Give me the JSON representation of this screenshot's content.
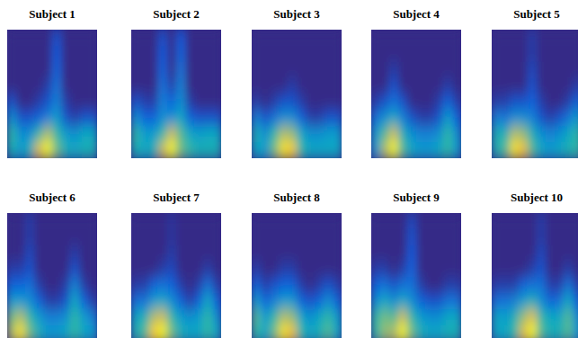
{
  "chart_data": [
    {
      "type": "heatmap",
      "title": "Subject 1",
      "color_range": [
        0,
        1
      ],
      "cells": [
        [
          0,
          0,
          0,
          0,
          0,
          0.1,
          0,
          0,
          0,
          0
        ],
        [
          0,
          0,
          0,
          0,
          0,
          0.12,
          0,
          0,
          0,
          0
        ],
        [
          0,
          0,
          0,
          0,
          0,
          0.15,
          0,
          0,
          0,
          0
        ],
        [
          0,
          0,
          0,
          0,
          0.05,
          0.2,
          0,
          0,
          0,
          0
        ],
        [
          0.1,
          0,
          0,
          0.05,
          0.1,
          0.25,
          0.05,
          0,
          0,
          0
        ],
        [
          0.3,
          0.1,
          0.1,
          0.15,
          0.25,
          0.35,
          0.1,
          0.05,
          0.1,
          0.1
        ],
        [
          0.5,
          0.3,
          0.3,
          0.5,
          0.7,
          0.5,
          0.35,
          0.3,
          0.4,
          0.4
        ],
        [
          0.45,
          0.35,
          0.45,
          0.8,
          1.0,
          0.6,
          0.45,
          0.4,
          0.45,
          0.45
        ]
      ]
    },
    {
      "type": "heatmap",
      "title": "Subject 2",
      "color_range": [
        0,
        1
      ],
      "cells": [
        [
          0,
          0,
          0,
          0.1,
          0,
          0.12,
          0,
          0,
          0,
          0
        ],
        [
          0,
          0,
          0,
          0.12,
          0,
          0.15,
          0,
          0,
          0,
          0
        ],
        [
          0,
          0,
          0,
          0.15,
          0,
          0.2,
          0,
          0,
          0,
          0
        ],
        [
          0,
          0,
          0,
          0.2,
          0.05,
          0.25,
          0,
          0,
          0,
          0
        ],
        [
          0.1,
          0.05,
          0.05,
          0.25,
          0.15,
          0.3,
          0.05,
          0,
          0,
          0
        ],
        [
          0.3,
          0.15,
          0.15,
          0.3,
          0.3,
          0.4,
          0.15,
          0.1,
          0.1,
          0.1
        ],
        [
          0.5,
          0.35,
          0.35,
          0.5,
          0.75,
          0.55,
          0.4,
          0.35,
          0.4,
          0.4
        ],
        [
          0.45,
          0.4,
          0.45,
          0.75,
          1.0,
          0.6,
          0.5,
          0.45,
          0.45,
          0.45
        ]
      ]
    },
    {
      "type": "heatmap",
      "title": "Subject 3",
      "color_range": [
        0,
        1
      ],
      "cells": [
        [
          0,
          0,
          0,
          0,
          0,
          0,
          0,
          0,
          0,
          0
        ],
        [
          0,
          0,
          0,
          0,
          0,
          0,
          0,
          0,
          0,
          0
        ],
        [
          0,
          0,
          0,
          0,
          0,
          0,
          0,
          0,
          0,
          0
        ],
        [
          0,
          0,
          0,
          0,
          0.05,
          0,
          0,
          0,
          0,
          0
        ],
        [
          0.05,
          0,
          0.05,
          0.1,
          0.1,
          0.05,
          0,
          0,
          0,
          0
        ],
        [
          0.25,
          0.1,
          0.2,
          0.3,
          0.3,
          0.15,
          0.05,
          0.05,
          0.1,
          0.1
        ],
        [
          0.45,
          0.3,
          0.5,
          0.7,
          0.65,
          0.4,
          0.3,
          0.3,
          0.35,
          0.35
        ],
        [
          0.4,
          0.35,
          0.6,
          0.95,
          0.9,
          0.5,
          0.4,
          0.4,
          0.4,
          0.4
        ]
      ]
    },
    {
      "type": "heatmap",
      "title": "Subject 4",
      "color_range": [
        0,
        1
      ],
      "cells": [
        [
          0,
          0,
          0,
          0,
          0,
          0,
          0,
          0,
          0,
          0
        ],
        [
          0,
          0,
          0,
          0,
          0,
          0,
          0,
          0,
          0,
          0
        ],
        [
          0,
          0,
          0.05,
          0,
          0,
          0,
          0,
          0,
          0,
          0
        ],
        [
          0,
          0,
          0.1,
          0,
          0,
          0,
          0,
          0,
          0.05,
          0
        ],
        [
          0.05,
          0.1,
          0.2,
          0.1,
          0,
          0,
          0,
          0.05,
          0.15,
          0.05
        ],
        [
          0.2,
          0.3,
          0.4,
          0.25,
          0.1,
          0.05,
          0.05,
          0.1,
          0.35,
          0.15
        ],
        [
          0.35,
          0.55,
          0.75,
          0.45,
          0.3,
          0.25,
          0.25,
          0.3,
          0.5,
          0.3
        ],
        [
          0.35,
          0.7,
          1.0,
          0.55,
          0.4,
          0.35,
          0.35,
          0.4,
          0.5,
          0.35
        ]
      ]
    },
    {
      "type": "heatmap",
      "title": "Subject 5",
      "color_range": [
        0,
        1
      ],
      "cells": [
        [
          0,
          0,
          0,
          0,
          0.05,
          0,
          0,
          0,
          0,
          0
        ],
        [
          0,
          0,
          0,
          0,
          0.05,
          0,
          0,
          0,
          0,
          0
        ],
        [
          0,
          0,
          0,
          0,
          0.08,
          0,
          0,
          0,
          0,
          0
        ],
        [
          0,
          0,
          0,
          0,
          0.1,
          0,
          0,
          0,
          0,
          0.05
        ],
        [
          0.05,
          0.05,
          0.1,
          0.1,
          0.15,
          0.05,
          0,
          0,
          0.05,
          0.15
        ],
        [
          0.25,
          0.2,
          0.3,
          0.3,
          0.25,
          0.1,
          0.05,
          0.1,
          0.2,
          0.35
        ],
        [
          0.45,
          0.45,
          0.7,
          0.65,
          0.45,
          0.3,
          0.25,
          0.3,
          0.4,
          0.5
        ],
        [
          0.45,
          0.55,
          0.95,
          0.85,
          0.55,
          0.4,
          0.35,
          0.4,
          0.45,
          0.5
        ]
      ]
    },
    {
      "type": "heatmap",
      "title": "Subject 6",
      "color_range": [
        0,
        1
      ],
      "cells": [
        [
          0,
          0,
          0.05,
          0,
          0,
          0,
          0,
          0,
          0,
          0
        ],
        [
          0,
          0,
          0.05,
          0,
          0,
          0,
          0,
          0,
          0,
          0
        ],
        [
          0,
          0,
          0.08,
          0,
          0,
          0,
          0,
          0.05,
          0,
          0
        ],
        [
          0.05,
          0.05,
          0.1,
          0,
          0,
          0,
          0,
          0.1,
          0,
          0
        ],
        [
          0.15,
          0.15,
          0.2,
          0.05,
          0,
          0,
          0.05,
          0.25,
          0.05,
          0
        ],
        [
          0.35,
          0.35,
          0.3,
          0.15,
          0.05,
          0.05,
          0.1,
          0.4,
          0.15,
          0.05
        ],
        [
          0.6,
          0.7,
          0.5,
          0.35,
          0.25,
          0.25,
          0.3,
          0.5,
          0.35,
          0.25
        ],
        [
          0.7,
          0.95,
          0.6,
          0.45,
          0.35,
          0.35,
          0.4,
          0.5,
          0.4,
          0.35
        ]
      ]
    },
    {
      "type": "heatmap",
      "title": "Subject 7",
      "color_range": [
        0,
        1
      ],
      "cells": [
        [
          0,
          0,
          0,
          0,
          0.03,
          0,
          0,
          0,
          0,
          0
        ],
        [
          0,
          0,
          0,
          0,
          0.03,
          0,
          0,
          0,
          0,
          0
        ],
        [
          0,
          0,
          0,
          0,
          0.05,
          0,
          0,
          0,
          0,
          0
        ],
        [
          0,
          0,
          0,
          0.05,
          0.08,
          0,
          0,
          0,
          0.05,
          0
        ],
        [
          0.05,
          0.05,
          0.15,
          0.2,
          0.15,
          0.05,
          0,
          0.05,
          0.2,
          0.05
        ],
        [
          0.2,
          0.2,
          0.35,
          0.4,
          0.3,
          0.15,
          0.05,
          0.15,
          0.4,
          0.15
        ],
        [
          0.4,
          0.45,
          0.7,
          0.75,
          0.5,
          0.35,
          0.3,
          0.35,
          0.5,
          0.3
        ],
        [
          0.45,
          0.55,
          0.9,
          1.0,
          0.6,
          0.45,
          0.4,
          0.4,
          0.5,
          0.4
        ]
      ]
    },
    {
      "type": "heatmap",
      "title": "Subject 8",
      "color_range": [
        0,
        1
      ],
      "cells": [
        [
          0,
          0,
          0,
          0,
          0,
          0,
          0,
          0,
          0,
          0
        ],
        [
          0,
          0,
          0,
          0,
          0,
          0,
          0,
          0,
          0,
          0
        ],
        [
          0,
          0,
          0,
          0,
          0,
          0,
          0,
          0,
          0,
          0
        ],
        [
          0.05,
          0,
          0,
          0.05,
          0.05,
          0,
          0,
          0,
          0,
          0
        ],
        [
          0.15,
          0.05,
          0.1,
          0.15,
          0.15,
          0.05,
          0,
          0.05,
          0.1,
          0.05
        ],
        [
          0.35,
          0.15,
          0.25,
          0.35,
          0.35,
          0.15,
          0.1,
          0.15,
          0.3,
          0.15
        ],
        [
          0.55,
          0.35,
          0.5,
          0.7,
          0.65,
          0.4,
          0.3,
          0.4,
          0.5,
          0.35
        ],
        [
          0.5,
          0.4,
          0.6,
          0.95,
          0.85,
          0.5,
          0.4,
          0.45,
          0.55,
          0.4
        ]
      ]
    },
    {
      "type": "heatmap",
      "title": "Subject 9",
      "color_range": [
        0,
        1
      ],
      "cells": [
        [
          0,
          0,
          0,
          0,
          0.08,
          0,
          0,
          0,
          0,
          0
        ],
        [
          0,
          0,
          0,
          0,
          0.1,
          0,
          0,
          0,
          0,
          0
        ],
        [
          0,
          0,
          0,
          0,
          0.12,
          0,
          0,
          0,
          0,
          0
        ],
        [
          0.05,
          0.05,
          0,
          0.05,
          0.15,
          0,
          0,
          0,
          0,
          0
        ],
        [
          0.15,
          0.2,
          0.1,
          0.2,
          0.2,
          0.05,
          0,
          0,
          0.05,
          0.05
        ],
        [
          0.3,
          0.4,
          0.3,
          0.4,
          0.3,
          0.15,
          0.1,
          0.1,
          0.2,
          0.2
        ],
        [
          0.5,
          0.6,
          0.55,
          0.75,
          0.5,
          0.35,
          0.3,
          0.3,
          0.4,
          0.4
        ],
        [
          0.5,
          0.65,
          0.7,
          1.0,
          0.6,
          0.45,
          0.4,
          0.4,
          0.45,
          0.45
        ]
      ]
    },
    {
      "type": "heatmap",
      "title": "Subject 10",
      "color_range": [
        0,
        1
      ],
      "cells": [
        [
          0,
          0,
          0,
          0,
          0,
          0.05,
          0,
          0,
          0,
          0
        ],
        [
          0,
          0,
          0,
          0,
          0,
          0.05,
          0,
          0,
          0,
          0
        ],
        [
          0,
          0,
          0,
          0,
          0,
          0.08,
          0,
          0,
          0,
          0
        ],
        [
          0,
          0,
          0,
          0,
          0.05,
          0.1,
          0,
          0,
          0.05,
          0
        ],
        [
          0.05,
          0.05,
          0.05,
          0.15,
          0.2,
          0.2,
          0.05,
          0.05,
          0.2,
          0.05
        ],
        [
          0.2,
          0.2,
          0.25,
          0.35,
          0.45,
          0.3,
          0.15,
          0.2,
          0.4,
          0.15
        ],
        [
          0.4,
          0.35,
          0.45,
          0.65,
          0.8,
          0.5,
          0.4,
          0.4,
          0.55,
          0.3
        ],
        [
          0.4,
          0.4,
          0.5,
          0.8,
          1.0,
          0.55,
          0.45,
          0.45,
          0.55,
          0.35
        ]
      ]
    }
  ]
}
